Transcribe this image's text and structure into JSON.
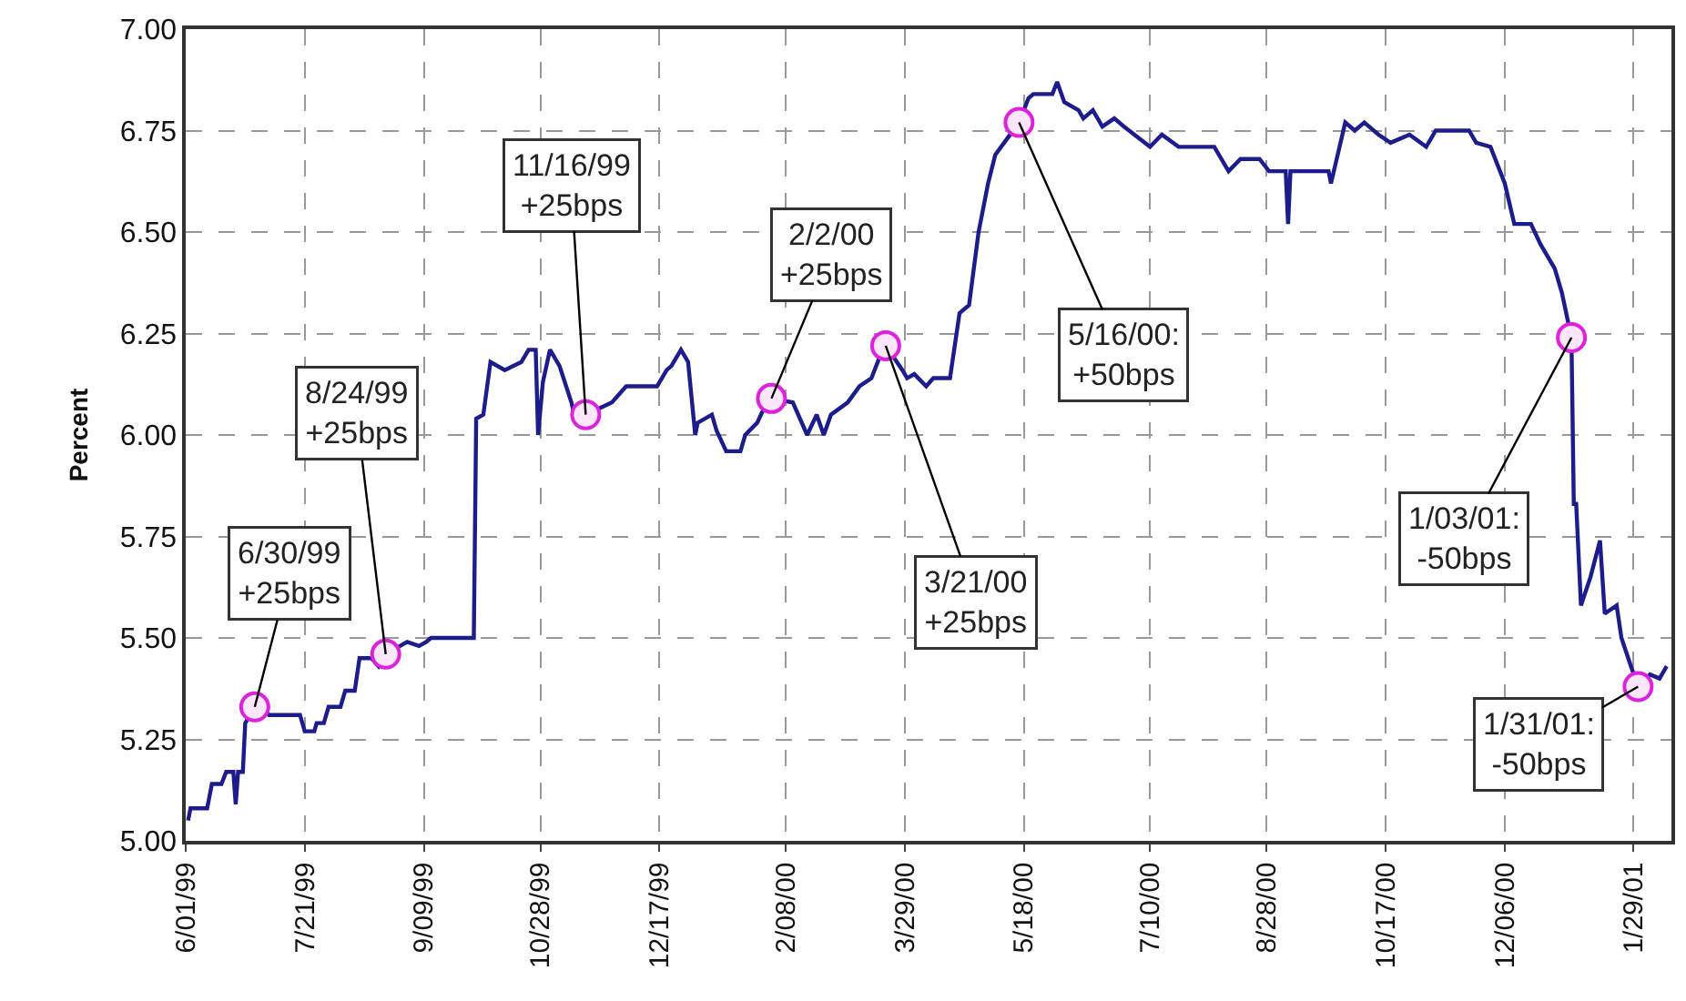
{
  "chart_data": {
    "type": "line",
    "ylabel": "Percent",
    "xlim": [
      "1999-06-01",
      "2001-02-14"
    ],
    "xticks": [
      {
        "value": "1999-06-01",
        "label": "6/01/99"
      },
      {
        "value": "1999-07-21",
        "label": "7/21/99"
      },
      {
        "value": "1999-09-09",
        "label": "9/09/99"
      },
      {
        "value": "1999-10-28",
        "label": "10/28/99"
      },
      {
        "value": "1999-12-17",
        "label": "12/17/99"
      },
      {
        "value": "2000-02-08",
        "label": "2/08/00"
      },
      {
        "value": "2000-03-29",
        "label": "3/29/00"
      },
      {
        "value": "2000-05-18",
        "label": "5/18/00"
      },
      {
        "value": "2000-07-10",
        "label": "7/10/00"
      },
      {
        "value": "2000-08-28",
        "label": "8/28/00"
      },
      {
        "value": "2000-10-17",
        "label": "10/17/00"
      },
      {
        "value": "2000-12-06",
        "label": "12/06/00"
      },
      {
        "value": "2001-01-29",
        "label": "1/29/01"
      }
    ],
    "ylim": [
      5,
      7
    ],
    "yticks": [
      {
        "value": 5,
        "label": "5.00"
      },
      {
        "value": 5.25,
        "label": "5.25"
      },
      {
        "value": 5.5,
        "label": "5.50"
      },
      {
        "value": 5.75,
        "label": "5.75"
      },
      {
        "value": 6,
        "label": "6.00"
      },
      {
        "value": 6.25,
        "label": "6.25"
      },
      {
        "value": 6.5,
        "label": "6.50"
      },
      {
        "value": 6.75,
        "label": "6.75"
      },
      {
        "value": 7,
        "label": "7.00"
      }
    ],
    "grid": true,
    "line_style": "solid",
    "series": [
      {
        "color": "#1c1c8c",
        "marker": "none",
        "x": [
          "1999-06-02",
          "1999-06-03",
          "1999-06-10",
          "1999-06-12",
          "1999-06-16",
          "1999-06-18",
          "1999-06-21",
          "1999-06-22",
          "1999-06-23",
          "1999-06-25",
          "1999-06-26",
          "1999-06-30",
          "1999-07-03",
          "1999-07-06",
          "1999-07-19",
          "1999-07-21",
          "1999-07-25",
          "1999-07-26",
          "1999-07-29",
          "1999-07-31",
          "1999-08-05",
          "1999-08-07",
          "1999-08-11",
          "1999-08-13",
          "1999-08-18",
          "1999-08-21",
          "1999-08-24",
          "1999-09-02",
          "1999-09-07",
          "1999-09-10",
          "1999-09-12",
          "1999-09-30",
          "1999-10-01",
          "1999-10-04",
          "1999-10-07",
          "1999-10-13",
          "1999-10-20",
          "1999-10-23",
          "1999-10-26",
          "1999-10-27",
          "1999-10-29",
          "1999-11-01",
          "1999-11-05",
          "1999-11-10",
          "1999-11-12",
          "1999-11-15",
          "1999-11-16",
          "1999-11-27",
          "1999-12-03",
          "1999-12-16",
          "1999-12-20",
          "1999-12-22",
          "1999-12-26",
          "1999-12-29",
          "2000-01-01",
          "2000-01-02",
          "2000-01-08",
          "2000-01-10",
          "2000-01-14",
          "2000-01-20",
          "2000-01-22",
          "2000-01-27",
          "2000-01-31",
          "2000-02-02",
          "2000-02-11",
          "2000-02-17",
          "2000-02-21",
          "2000-02-24",
          "2000-02-27",
          "2000-03-05",
          "2000-03-10",
          "2000-03-15",
          "2000-03-19",
          "2000-03-21",
          "2000-03-28",
          "2000-03-30",
          "2000-04-02",
          "2000-04-07",
          "2000-04-10",
          "2000-04-17",
          "2000-04-21",
          "2000-04-25",
          "2000-04-29",
          "2000-05-03",
          "2000-05-06",
          "2000-05-11",
          "2000-05-16",
          "2000-05-20",
          "2000-05-22",
          "2000-05-30",
          "2000-06-01",
          "2000-06-04",
          "2000-06-10",
          "2000-06-12",
          "2000-06-16",
          "2000-06-20",
          "2000-06-25",
          "2000-06-29",
          "2000-07-10",
          "2000-07-15",
          "2000-07-22",
          "2000-08-06",
          "2000-08-12",
          "2000-08-17",
          "2000-08-25",
          "2000-08-29",
          "2000-09-05",
          "2000-09-06",
          "2000-09-07",
          "2000-09-23",
          "2000-09-24",
          "2000-09-26",
          "2000-09-30",
          "2000-10-04",
          "2000-10-08",
          "2000-10-14",
          "2000-10-19",
          "2000-10-27",
          "2000-11-03",
          "2000-11-07",
          "2000-11-21",
          "2000-11-24",
          "2000-11-30",
          "2000-12-06",
          "2000-12-10",
          "2000-12-17",
          "2000-12-21",
          "2000-12-27",
          "2000-12-30",
          "2001-01-03",
          "2001-01-04",
          "2001-01-05",
          "2001-01-07",
          "2001-01-11",
          "2001-01-15",
          "2001-01-17",
          "2001-01-22",
          "2001-01-24",
          "2001-01-28",
          "2001-01-31",
          "2001-02-05",
          "2001-02-09",
          "2001-02-12"
        ],
        "values": [
          5.05,
          5.08,
          5.08,
          5.14,
          5.14,
          5.17,
          5.17,
          5.09,
          5.17,
          5.17,
          5.29,
          5.33,
          5.33,
          5.31,
          5.31,
          5.27,
          5.27,
          5.29,
          5.29,
          5.33,
          5.33,
          5.37,
          5.37,
          5.45,
          5.45,
          5.43,
          5.46,
          5.49,
          5.48,
          5.49,
          5.5,
          5.5,
          6.04,
          6.05,
          6.18,
          6.16,
          6.18,
          6.21,
          6.21,
          6.0,
          6.13,
          6.21,
          6.17,
          6.08,
          6.03,
          6.03,
          6.05,
          6.08,
          6.12,
          6.12,
          6.16,
          6.17,
          6.21,
          6.18,
          6.0,
          6.03,
          6.05,
          6.01,
          5.96,
          5.96,
          6.0,
          6.03,
          6.08,
          6.09,
          6.08,
          6.0,
          6.05,
          6.0,
          6.05,
          6.08,
          6.12,
          6.14,
          6.2,
          6.22,
          6.16,
          6.14,
          6.15,
          6.12,
          6.14,
          6.14,
          6.3,
          6.32,
          6.5,
          6.62,
          6.69,
          6.73,
          6.77,
          6.83,
          6.84,
          6.84,
          6.87,
          6.82,
          6.8,
          6.78,
          6.8,
          6.76,
          6.78,
          6.76,
          6.71,
          6.74,
          6.71,
          6.71,
          6.65,
          6.68,
          6.68,
          6.65,
          6.65,
          6.52,
          6.65,
          6.65,
          6.62,
          6.67,
          6.77,
          6.75,
          6.77,
          6.74,
          6.72,
          6.74,
          6.71,
          6.75,
          6.75,
          6.72,
          6.71,
          6.62,
          6.52,
          6.52,
          6.47,
          6.41,
          6.35,
          6.24,
          5.83,
          5.83,
          5.58,
          5.65,
          5.74,
          5.56,
          5.58,
          5.5,
          5.43,
          5.38,
          5.41,
          5.4,
          5.43
        ]
      },
      {
        "type": "scatter",
        "color": "#dd22dd",
        "marker": "circle",
        "x": [
          "1999-06-30",
          "1999-08-24",
          "1999-11-16",
          "2000-02-02",
          "2000-03-21",
          "2000-05-16",
          "2001-01-03",
          "2001-01-31"
        ],
        "values": [
          5.33,
          5.46,
          6.05,
          6.09,
          6.22,
          6.77,
          6.24,
          5.38
        ]
      }
    ],
    "annotations": [
      {
        "text": "6/30/99\n+25bps",
        "x": "1999-06-30",
        "y": 5.33
      },
      {
        "text": "8/24/99\n+25bps",
        "x": "1999-08-24",
        "y": 5.46
      },
      {
        "text": "11/16/99\n+25bps",
        "x": "1999-11-16",
        "y": 6.05
      },
      {
        "text": "2/2/00\n+25bps",
        "x": "2000-02-02",
        "y": 6.09
      },
      {
        "text": "3/21/00\n+25bps",
        "x": "2000-03-21",
        "y": 6.22
      },
      {
        "text": "5/16/00:\n+50bps",
        "x": "2000-05-16",
        "y": 6.77
      },
      {
        "text": "1/03/01:\n-50bps",
        "x": "2001-01-03",
        "y": 6.24
      },
      {
        "text": "1/31/01:\n-50bps",
        "x": "2001-01-31",
        "y": 5.38
      }
    ]
  }
}
